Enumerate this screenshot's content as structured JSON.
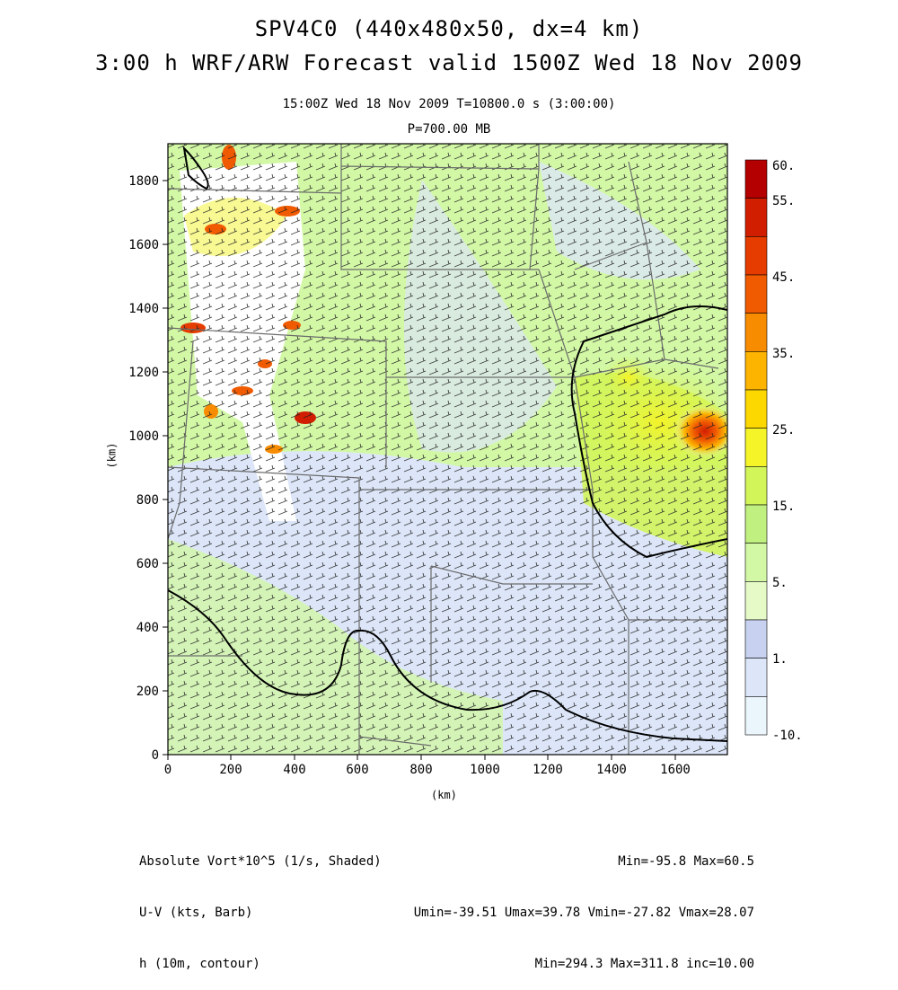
{
  "title": {
    "line1": "SPV4C0 (440x480x50, dx=4 km)",
    "line2": "3:00 h WRF/ARW Forecast valid 1500Z Wed 18 Nov 2009"
  },
  "subtitle": {
    "time": "15:00Z Wed 18 Nov 2009     T=10800.0 s (3:00:00)",
    "pressure": "P=700.00 MB"
  },
  "axes": {
    "x_label": "(km)",
    "y_label": "(km)",
    "x_ticks": [
      "0",
      "200",
      "400",
      "600",
      "800",
      "1000",
      "1200",
      "1400",
      "1600"
    ],
    "y_ticks": [
      "0",
      "200",
      "400",
      "600",
      "800",
      "1000",
      "1200",
      "1400",
      "1600",
      "1800"
    ]
  },
  "colorbar": {
    "labels": [
      "60.",
      "55.",
      "45.",
      "35.",
      "25.",
      "15.",
      "5.",
      "1.",
      "-10."
    ],
    "colors": [
      "#b40000",
      "#d21e00",
      "#e63c00",
      "#f05a00",
      "#f88c00",
      "#fcb400",
      "#fcd800",
      "#f4f428",
      "#d2f55a",
      "#c0f080",
      "#d2f8a6",
      "#e6fac8",
      "#c8d2f0",
      "#dce6f8",
      "#eaf5fc"
    ]
  },
  "footer": {
    "left": [
      "Absolute Vort*10^5 (1/s, Shaded)",
      "U-V (kts, Barb)",
      "h (10m, contour)"
    ],
    "right": [
      "Min=-95.8 Max=60.5",
      "Umin=-39.51 Umax=39.78 Vmin=-27.82 Vmax=28.07",
      "Min=294.3 Max=311.8 inc=10.00"
    ]
  }
}
